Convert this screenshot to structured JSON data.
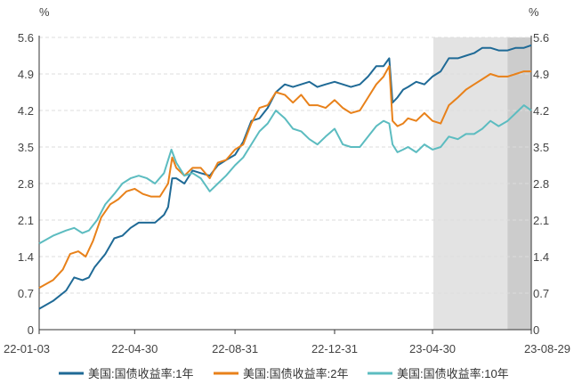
{
  "chart_data": {
    "type": "line",
    "title": "",
    "xlabel": "",
    "ylabel": "%",
    "ylabel_right": "%",
    "ylim": [
      0,
      5.6
    ],
    "yticks": [
      "0",
      "0.7",
      "1.4",
      "2.1",
      "2.8",
      "3.5",
      "4.2",
      "4.9",
      "5.6"
    ],
    "xlim": [
      "2022-01-03",
      "2023-08-29"
    ],
    "xticks": [
      "22-01-03",
      "22-04-30",
      "22-08-31",
      "22-12-31",
      "23-04-30",
      "23-08-29"
    ],
    "grid": true,
    "legend_position": "bottom",
    "shaded_ranges": [
      {
        "start": "2023-05-01",
        "end": "2023-08-29",
        "color": "#e3e3e3"
      },
      {
        "start": "2023-07-31",
        "end": "2023-08-29",
        "color": "#cccccc"
      }
    ],
    "series": [
      {
        "name": "美国:国债收益率:1年",
        "color": "#1f6a96",
        "points": [
          [
            "2022-01-03",
            0.4
          ],
          [
            "2022-01-20",
            0.55
          ],
          [
            "2022-02-05",
            0.75
          ],
          [
            "2022-02-15",
            1.0
          ],
          [
            "2022-02-25",
            0.95
          ],
          [
            "2022-03-05",
            1.0
          ],
          [
            "2022-03-12",
            1.2
          ],
          [
            "2022-03-25",
            1.45
          ],
          [
            "2022-04-05",
            1.75
          ],
          [
            "2022-04-15",
            1.8
          ],
          [
            "2022-04-25",
            1.95
          ],
          [
            "2022-05-05",
            2.05
          ],
          [
            "2022-05-15",
            2.05
          ],
          [
            "2022-05-25",
            2.05
          ],
          [
            "2022-06-05",
            2.2
          ],
          [
            "2022-06-10",
            2.35
          ],
          [
            "2022-06-15",
            2.9
          ],
          [
            "2022-06-20",
            2.9
          ],
          [
            "2022-06-30",
            2.8
          ],
          [
            "2022-07-10",
            3.05
          ],
          [
            "2022-07-20",
            3.0
          ],
          [
            "2022-07-31",
            2.95
          ],
          [
            "2022-08-10",
            3.15
          ],
          [
            "2022-08-20",
            3.25
          ],
          [
            "2022-08-31",
            3.35
          ],
          [
            "2022-09-10",
            3.6
          ],
          [
            "2022-09-20",
            4.0
          ],
          [
            "2022-09-30",
            4.05
          ],
          [
            "2022-10-10",
            4.25
          ],
          [
            "2022-10-20",
            4.55
          ],
          [
            "2022-10-31",
            4.7
          ],
          [
            "2022-11-10",
            4.65
          ],
          [
            "2022-11-20",
            4.7
          ],
          [
            "2022-11-30",
            4.75
          ],
          [
            "2022-12-10",
            4.65
          ],
          [
            "2022-12-20",
            4.7
          ],
          [
            "2022-12-31",
            4.75
          ],
          [
            "2023-01-10",
            4.7
          ],
          [
            "2023-01-20",
            4.65
          ],
          [
            "2023-01-31",
            4.7
          ],
          [
            "2023-02-10",
            4.85
          ],
          [
            "2023-02-20",
            5.05
          ],
          [
            "2023-03-01",
            5.05
          ],
          [
            "2023-03-08",
            5.2
          ],
          [
            "2023-03-12",
            4.35
          ],
          [
            "2023-03-18",
            4.45
          ],
          [
            "2023-03-25",
            4.6
          ],
          [
            "2023-03-31",
            4.65
          ],
          [
            "2023-04-10",
            4.75
          ],
          [
            "2023-04-20",
            4.7
          ],
          [
            "2023-04-30",
            4.85
          ],
          [
            "2023-05-10",
            4.95
          ],
          [
            "2023-05-20",
            5.2
          ],
          [
            "2023-05-31",
            5.2
          ],
          [
            "2023-06-10",
            5.25
          ],
          [
            "2023-06-20",
            5.3
          ],
          [
            "2023-06-30",
            5.4
          ],
          [
            "2023-07-10",
            5.4
          ],
          [
            "2023-07-20",
            5.35
          ],
          [
            "2023-07-31",
            5.35
          ],
          [
            "2023-08-10",
            5.4
          ],
          [
            "2023-08-20",
            5.4
          ],
          [
            "2023-08-29",
            5.45
          ]
        ]
      },
      {
        "name": "美国:国债收益率:2年",
        "color": "#e8811a",
        "points": [
          [
            "2022-01-03",
            0.8
          ],
          [
            "2022-01-20",
            0.95
          ],
          [
            "2022-02-01",
            1.15
          ],
          [
            "2022-02-10",
            1.45
          ],
          [
            "2022-02-20",
            1.5
          ],
          [
            "2022-03-01",
            1.4
          ],
          [
            "2022-03-10",
            1.7
          ],
          [
            "2022-03-20",
            2.15
          ],
          [
            "2022-03-31",
            2.4
          ],
          [
            "2022-04-10",
            2.5
          ],
          [
            "2022-04-20",
            2.65
          ],
          [
            "2022-04-30",
            2.7
          ],
          [
            "2022-05-10",
            2.6
          ],
          [
            "2022-05-20",
            2.55
          ],
          [
            "2022-05-31",
            2.55
          ],
          [
            "2022-06-10",
            2.8
          ],
          [
            "2022-06-15",
            3.3
          ],
          [
            "2022-06-20",
            3.1
          ],
          [
            "2022-06-30",
            2.95
          ],
          [
            "2022-07-10",
            3.1
          ],
          [
            "2022-07-20",
            3.1
          ],
          [
            "2022-07-31",
            2.9
          ],
          [
            "2022-08-10",
            3.2
          ],
          [
            "2022-08-20",
            3.25
          ],
          [
            "2022-08-31",
            3.45
          ],
          [
            "2022-09-10",
            3.55
          ],
          [
            "2022-09-20",
            3.95
          ],
          [
            "2022-09-30",
            4.25
          ],
          [
            "2022-10-10",
            4.3
          ],
          [
            "2022-10-20",
            4.55
          ],
          [
            "2022-10-31",
            4.5
          ],
          [
            "2022-11-10",
            4.35
          ],
          [
            "2022-11-20",
            4.5
          ],
          [
            "2022-11-30",
            4.3
          ],
          [
            "2022-12-10",
            4.3
          ],
          [
            "2022-12-20",
            4.25
          ],
          [
            "2022-12-31",
            4.4
          ],
          [
            "2023-01-10",
            4.25
          ],
          [
            "2023-01-20",
            4.15
          ],
          [
            "2023-01-31",
            4.2
          ],
          [
            "2023-02-10",
            4.45
          ],
          [
            "2023-02-20",
            4.7
          ],
          [
            "2023-03-01",
            4.85
          ],
          [
            "2023-03-08",
            5.05
          ],
          [
            "2023-03-12",
            4.0
          ],
          [
            "2023-03-18",
            3.9
          ],
          [
            "2023-03-25",
            3.95
          ],
          [
            "2023-03-31",
            4.05
          ],
          [
            "2023-04-10",
            4.0
          ],
          [
            "2023-04-20",
            4.15
          ],
          [
            "2023-04-30",
            4.0
          ],
          [
            "2023-05-10",
            3.95
          ],
          [
            "2023-05-20",
            4.3
          ],
          [
            "2023-05-31",
            4.45
          ],
          [
            "2023-06-10",
            4.6
          ],
          [
            "2023-06-20",
            4.7
          ],
          [
            "2023-06-30",
            4.8
          ],
          [
            "2023-07-10",
            4.9
          ],
          [
            "2023-07-20",
            4.85
          ],
          [
            "2023-07-31",
            4.85
          ],
          [
            "2023-08-10",
            4.9
          ],
          [
            "2023-08-20",
            4.95
          ],
          [
            "2023-08-29",
            4.95
          ]
        ]
      },
      {
        "name": "美国:国债收益率:10年",
        "color": "#5cbcc0",
        "points": [
          [
            "2022-01-03",
            1.65
          ],
          [
            "2022-01-20",
            1.8
          ],
          [
            "2022-02-05",
            1.9
          ],
          [
            "2022-02-15",
            1.95
          ],
          [
            "2022-02-25",
            1.85
          ],
          [
            "2022-03-05",
            1.9
          ],
          [
            "2022-03-15",
            2.1
          ],
          [
            "2022-03-25",
            2.4
          ],
          [
            "2022-04-05",
            2.6
          ],
          [
            "2022-04-15",
            2.8
          ],
          [
            "2022-04-25",
            2.9
          ],
          [
            "2022-05-05",
            2.95
          ],
          [
            "2022-05-15",
            2.9
          ],
          [
            "2022-05-25",
            2.8
          ],
          [
            "2022-06-05",
            3.0
          ],
          [
            "2022-06-14",
            3.45
          ],
          [
            "2022-06-20",
            3.2
          ],
          [
            "2022-06-30",
            2.95
          ],
          [
            "2022-07-10",
            3.0
          ],
          [
            "2022-07-20",
            2.9
          ],
          [
            "2022-07-31",
            2.65
          ],
          [
            "2022-08-10",
            2.8
          ],
          [
            "2022-08-20",
            2.95
          ],
          [
            "2022-08-31",
            3.15
          ],
          [
            "2022-09-10",
            3.3
          ],
          [
            "2022-09-20",
            3.55
          ],
          [
            "2022-09-30",
            3.8
          ],
          [
            "2022-10-10",
            3.95
          ],
          [
            "2022-10-20",
            4.2
          ],
          [
            "2022-10-31",
            4.05
          ],
          [
            "2022-11-10",
            3.85
          ],
          [
            "2022-11-20",
            3.8
          ],
          [
            "2022-11-30",
            3.65
          ],
          [
            "2022-12-10",
            3.55
          ],
          [
            "2022-12-20",
            3.7
          ],
          [
            "2022-12-31",
            3.85
          ],
          [
            "2023-01-10",
            3.55
          ],
          [
            "2023-01-20",
            3.5
          ],
          [
            "2023-01-31",
            3.5
          ],
          [
            "2023-02-10",
            3.7
          ],
          [
            "2023-02-20",
            3.9
          ],
          [
            "2023-03-01",
            4.0
          ],
          [
            "2023-03-08",
            3.95
          ],
          [
            "2023-03-12",
            3.55
          ],
          [
            "2023-03-18",
            3.4
          ],
          [
            "2023-03-25",
            3.45
          ],
          [
            "2023-03-31",
            3.5
          ],
          [
            "2023-04-10",
            3.4
          ],
          [
            "2023-04-20",
            3.55
          ],
          [
            "2023-04-30",
            3.45
          ],
          [
            "2023-05-10",
            3.5
          ],
          [
            "2023-05-20",
            3.7
          ],
          [
            "2023-05-31",
            3.65
          ],
          [
            "2023-06-10",
            3.75
          ],
          [
            "2023-06-20",
            3.75
          ],
          [
            "2023-06-30",
            3.85
          ],
          [
            "2023-07-10",
            4.0
          ],
          [
            "2023-07-20",
            3.9
          ],
          [
            "2023-07-31",
            4.0
          ],
          [
            "2023-08-10",
            4.15
          ],
          [
            "2023-08-20",
            4.3
          ],
          [
            "2023-08-29",
            4.2
          ]
        ]
      }
    ]
  }
}
